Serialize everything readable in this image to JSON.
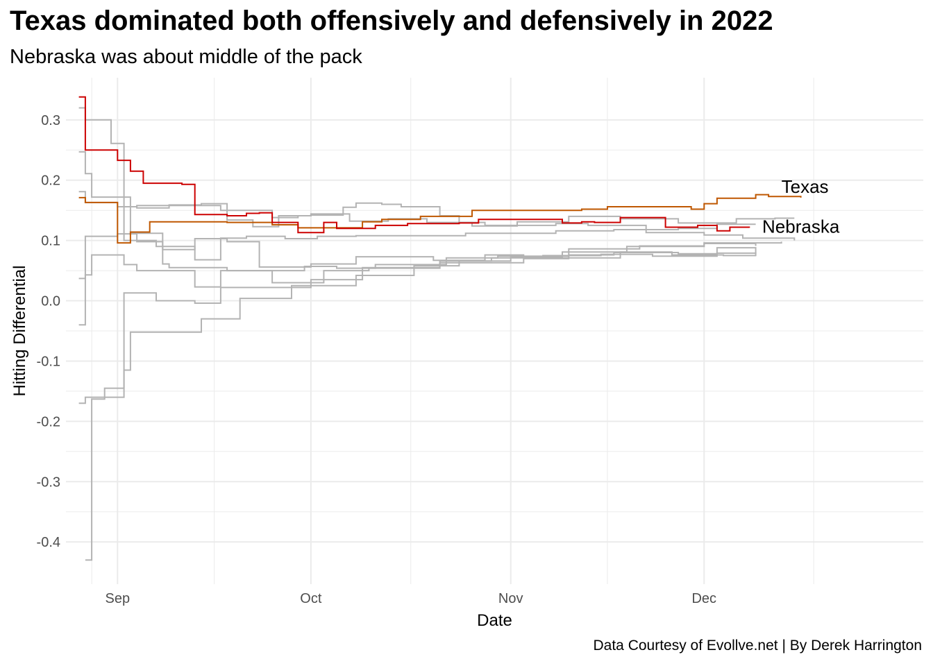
{
  "title": "Texas dominated both offensively and defensively in 2022",
  "subtitle": "Nebraska was about middle of the pack",
  "caption": "Data Courtesy of Evollve.net | By Derek Harrington",
  "chart_data": {
    "type": "line",
    "step": true,
    "xlabel": "Date",
    "ylabel": "Hitting Differential",
    "x_ticks": [
      "Sep",
      "Oct",
      "Nov",
      "Dec"
    ],
    "x_tick_dates": [
      "2022-09-01",
      "2022-10-01",
      "2022-11-01",
      "2022-12-01"
    ],
    "y_ticks": [
      0.3,
      0.2,
      0.1,
      0.0,
      -0.1,
      -0.2,
      -0.3,
      -0.4
    ],
    "y_tick_labels": [
      "0.3",
      "0.2",
      "0.1",
      "0.0",
      "-0.1",
      "-0.2",
      "-0.3",
      "-0.4"
    ],
    "xlim": [
      "2022-08-24",
      "2023-01-04"
    ],
    "ylim": [
      -0.47,
      0.37
    ],
    "grid": true,
    "legend": "none",
    "colors": {
      "highlight_nebraska": "#cc0000",
      "highlight_texas": "#bf5700",
      "other": "#b3b3b3",
      "grid": "#ebebeb"
    },
    "series": [
      {
        "name": "Texas",
        "highlight": true,
        "color": "#bf5700",
        "x": [
          "2022-08-26",
          "2022-08-27",
          "2022-09-01",
          "2022-09-03",
          "2022-09-06",
          "2022-09-18",
          "2022-09-25",
          "2022-09-29",
          "2022-10-09",
          "2022-10-12",
          "2022-10-18",
          "2022-10-26",
          "2022-11-12",
          "2022-11-16",
          "2022-11-23",
          "2022-11-29",
          "2022-12-01",
          "2022-12-03",
          "2022-12-09",
          "2022-12-11",
          "2022-12-16"
        ],
        "y": [
          0.171,
          0.163,
          0.096,
          0.114,
          0.131,
          0.13,
          0.126,
          0.121,
          0.131,
          0.135,
          0.14,
          0.15,
          0.152,
          0.156,
          0.156,
          0.152,
          0.161,
          0.17,
          0.176,
          0.173,
          0.171
        ]
      },
      {
        "name": "Nebraska",
        "highlight": true,
        "color": "#cc0000",
        "x": [
          "2022-08-26",
          "2022-08-27",
          "2022-09-01",
          "2022-09-03",
          "2022-09-05",
          "2022-09-11",
          "2022-09-13",
          "2022-09-18",
          "2022-09-21",
          "2022-09-23",
          "2022-09-25",
          "2022-09-29",
          "2022-10-01",
          "2022-10-03",
          "2022-10-05",
          "2022-10-11",
          "2022-10-16",
          "2022-10-24",
          "2022-10-27",
          "2022-11-01",
          "2022-11-03",
          "2022-11-09",
          "2022-11-12",
          "2022-11-14",
          "2022-11-18",
          "2022-11-25",
          "2022-11-30",
          "2022-12-03",
          "2022-12-05",
          "2022-12-08"
        ],
        "y": [
          0.338,
          0.25,
          0.233,
          0.215,
          0.195,
          0.193,
          0.143,
          0.141,
          0.145,
          0.146,
          0.13,
          0.113,
          0.113,
          0.13,
          0.12,
          0.125,
          0.128,
          0.129,
          0.135,
          0.135,
          0.135,
          0.129,
          0.131,
          0.13,
          0.138,
          0.122,
          0.125,
          0.116,
          0.122,
          0.121
        ]
      },
      {
        "name": "",
        "highlight": false,
        "x": [
          "2022-08-26",
          "2022-08-27",
          "2022-09-02",
          "2022-09-07",
          "2022-09-09",
          "2022-09-13",
          "2022-09-17",
          "2022-10-01",
          "2022-10-09",
          "2022-10-21",
          "2022-11-03",
          "2022-11-10",
          "2022-11-17",
          "2022-11-27",
          "2022-12-03",
          "2022-12-09"
        ],
        "y": [
          -0.17,
          -0.16,
          0.013,
          0.0,
          0.0,
          -0.004,
          0.022,
          0.035,
          0.055,
          0.063,
          0.07,
          0.076,
          0.08,
          0.078,
          0.088,
          0.078
        ]
      },
      {
        "name": "",
        "highlight": false,
        "x": [
          "2022-08-27",
          "2022-08-28",
          "2022-08-30",
          "2022-09-02",
          "2022-09-03",
          "2022-09-08",
          "2022-09-14",
          "2022-09-20",
          "2022-09-28",
          "2022-10-08",
          "2022-10-17",
          "2022-10-24",
          "2022-11-01",
          "2022-11-08",
          "2022-11-18",
          "2022-11-26",
          "2022-12-04",
          "2022-12-09"
        ],
        "y": [
          -0.43,
          -0.163,
          -0.145,
          -0.115,
          -0.052,
          -0.052,
          -0.03,
          0.004,
          0.025,
          0.042,
          0.058,
          0.066,
          0.072,
          0.071,
          0.081,
          0.076,
          0.075,
          0.075
        ]
      },
      {
        "name": "",
        "highlight": false,
        "x": [
          "2022-08-26",
          "2022-08-27",
          "2022-08-28",
          "2022-09-02",
          "2022-09-04",
          "2022-09-09",
          "2022-09-13",
          "2022-09-17",
          "2022-09-25",
          "2022-10-03",
          "2022-10-10",
          "2022-10-21",
          "2022-10-29",
          "2022-11-06",
          "2022-11-15",
          "2022-11-23",
          "2022-12-03",
          "2022-12-09"
        ],
        "y": [
          -0.04,
          0.043,
          0.076,
          0.06,
          0.05,
          0.05,
          0.023,
          0.05,
          0.03,
          0.05,
          0.054,
          0.066,
          0.071,
          0.075,
          0.077,
          0.074,
          0.079,
          0.074
        ]
      },
      {
        "name": "",
        "highlight": false,
        "x": [
          "2022-08-26",
          "2022-08-27",
          "2022-09-01",
          "2022-09-04",
          "2022-09-08",
          "2022-09-09",
          "2022-09-18",
          "2022-09-30",
          "2022-10-05",
          "2022-10-11",
          "2022-10-22",
          "2022-10-30",
          "2022-11-10",
          "2022-11-21",
          "2022-12-01",
          "2022-12-09"
        ],
        "y": [
          0.037,
          0.107,
          0.111,
          0.098,
          0.061,
          0.055,
          0.05,
          0.057,
          0.054,
          0.06,
          0.071,
          0.074,
          0.086,
          0.091,
          0.095,
          0.091
        ]
      },
      {
        "name": "",
        "highlight": false,
        "x": [
          "2022-08-26",
          "2022-08-27",
          "2022-08-28",
          "2022-09-03",
          "2022-09-08",
          "2022-09-13",
          "2022-09-18",
          "2022-09-23",
          "2022-10-01",
          "2022-10-08",
          "2022-10-12",
          "2022-10-20",
          "2022-10-28",
          "2022-11-03",
          "2022-11-09",
          "2022-11-19",
          "2022-12-01",
          "2022-12-13"
        ],
        "y": [
          0.247,
          0.211,
          0.172,
          0.112,
          0.085,
          0.103,
          0.098,
          0.056,
          0.061,
          0.073,
          0.073,
          0.067,
          0.076,
          0.072,
          0.081,
          0.09,
          0.096,
          0.098
        ]
      },
      {
        "name": "",
        "highlight": false,
        "x": [
          "2022-08-26",
          "2022-08-27",
          "2022-08-31",
          "2022-09-02",
          "2022-09-07",
          "2022-09-13",
          "2022-09-17",
          "2022-09-21",
          "2022-09-27",
          "2022-10-02",
          "2022-10-08",
          "2022-10-15",
          "2022-10-25",
          "2022-11-08",
          "2022-11-17",
          "2022-11-27",
          "2022-12-03",
          "2022-12-09"
        ],
        "y": [
          0.32,
          0.3,
          0.261,
          0.1,
          0.09,
          0.068,
          0.104,
          0.107,
          0.103,
          0.107,
          0.108,
          0.108,
          0.112,
          0.116,
          0.118,
          0.12,
          0.127,
          0.127
        ]
      },
      {
        "name": "",
        "highlight": false,
        "x": [
          "2022-08-26",
          "2022-08-27",
          "2022-09-01",
          "2022-09-04",
          "2022-09-09",
          "2022-09-14",
          "2022-09-18",
          "2022-09-22",
          "2022-09-26",
          "2022-10-01",
          "2022-10-07",
          "2022-10-13",
          "2022-10-19",
          "2022-10-26",
          "2022-11-02",
          "2022-11-10",
          "2022-11-18",
          "2022-11-27",
          "2022-12-06",
          "2022-12-12",
          "2022-12-15"
        ],
        "y": [
          0.181,
          0.163,
          0.156,
          0.154,
          0.159,
          0.161,
          0.134,
          0.123,
          0.141,
          0.144,
          0.132,
          0.136,
          0.13,
          0.124,
          0.131,
          0.14,
          0.136,
          0.129,
          0.136,
          0.137,
          0.137
        ]
      },
      {
        "name": "",
        "highlight": false,
        "x": [
          "2022-09-01",
          "2022-09-04",
          "2022-09-11",
          "2022-09-17",
          "2022-09-25",
          "2022-09-29",
          "2022-10-01",
          "2022-10-06",
          "2022-10-08",
          "2022-10-12",
          "2022-10-15",
          "2022-10-21",
          "2022-10-24",
          "2022-10-28",
          "2022-11-08",
          "2022-11-13",
          "2022-11-22",
          "2022-12-01",
          "2022-12-07",
          "2022-12-15"
        ],
        "y": [
          0.156,
          0.158,
          0.158,
          0.15,
          0.138,
          0.141,
          0.142,
          0.155,
          0.162,
          0.16,
          0.156,
          0.141,
          0.13,
          0.125,
          0.128,
          0.125,
          0.113,
          0.109,
          0.104,
          0.1
        ]
      }
    ]
  }
}
